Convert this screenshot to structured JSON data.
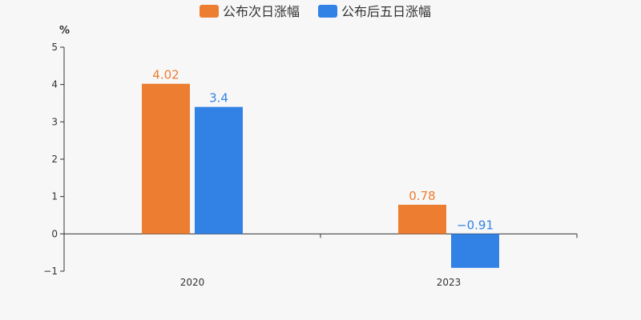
{
  "chart_data": {
    "type": "bar",
    "unit": "%",
    "categories": [
      "2020",
      "2023"
    ],
    "series": [
      {
        "name": "公布次日涨幅",
        "values": [
          4.02,
          0.78
        ],
        "labels": [
          "4.02",
          "0.78"
        ],
        "color": "#ed7d31"
      },
      {
        "name": "公布后五日涨幅",
        "values": [
          3.4,
          -0.91
        ],
        "labels": [
          "3.4",
          "−0.91"
        ],
        "color": "#3282e6"
      }
    ],
    "ylim": [
      -1,
      5
    ],
    "yticks": [
      "−1",
      "0",
      "1",
      "2",
      "3",
      "4",
      "5"
    ],
    "grid": false,
    "legend": "top-center"
  }
}
